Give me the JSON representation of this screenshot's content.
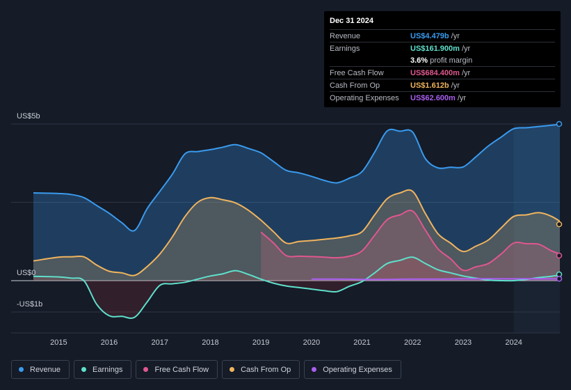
{
  "tooltip": {
    "date": "Dec 31 2024",
    "rows": [
      {
        "label": "Revenue",
        "value": "US$4.479b",
        "unit": "/yr",
        "color": "#3a9bef"
      },
      {
        "label": "Earnings",
        "value": "US$161.900m",
        "unit": "/yr",
        "color": "#5fe0cc"
      },
      {
        "label": "",
        "value": "3.6%",
        "unit": "profit margin",
        "color": "#ffffff"
      },
      {
        "label": "Free Cash Flow",
        "value": "US$684.400m",
        "unit": "/yr",
        "color": "#e0578f"
      },
      {
        "label": "Cash From Op",
        "value": "US$1.612b",
        "unit": "/yr",
        "color": "#f0b45e"
      },
      {
        "label": "Operating Expenses",
        "value": "US$62.600m",
        "unit": "/yr",
        "color": "#a95ff0"
      }
    ]
  },
  "legend": [
    {
      "label": "Revenue",
      "color": "#3a9bef"
    },
    {
      "label": "Earnings",
      "color": "#5fe0cc"
    },
    {
      "label": "Free Cash Flow",
      "color": "#e0578f"
    },
    {
      "label": "Cash From Op",
      "color": "#f0b45e"
    },
    {
      "label": "Operating Expenses",
      "color": "#a95ff0"
    }
  ],
  "chart_data": {
    "type": "area",
    "title": "",
    "xlabel": "",
    "ylabel": "",
    "ylim": [
      -1.0,
      5.0
    ],
    "y_tick_labels": [
      {
        "value": 5,
        "label": "US$5b"
      },
      {
        "value": 0,
        "label": "US$0"
      },
      {
        "value": -1,
        "label": "-US$1b"
      }
    ],
    "x_tick_labels": [
      {
        "value": 2015,
        "label": "2015"
      },
      {
        "value": 2016,
        "label": "2016"
      },
      {
        "value": 2017,
        "label": "2017"
      },
      {
        "value": 2018,
        "label": "2018"
      },
      {
        "value": 2019,
        "label": "2019"
      },
      {
        "value": 2020,
        "label": "2020"
      },
      {
        "value": 2021,
        "label": "2021"
      },
      {
        "value": 2022,
        "label": "2022"
      },
      {
        "value": 2023,
        "label": "2023"
      },
      {
        "value": 2024,
        "label": "2024"
      }
    ],
    "xlim": [
      2014.0,
      2025.0
    ],
    "highlight_from": 2024.0,
    "series": [
      {
        "name": "Revenue",
        "color": "#3a9bef",
        "x": [
          2014.5,
          2015.0,
          2015.25,
          2015.5,
          2015.75,
          2016.0,
          2016.25,
          2016.5,
          2016.75,
          2017.0,
          2017.25,
          2017.5,
          2017.75,
          2018.0,
          2018.25,
          2018.5,
          2018.75,
          2019.0,
          2019.25,
          2019.5,
          2019.75,
          2020.0,
          2020.25,
          2020.5,
          2020.75,
          2021.0,
          2021.25,
          2021.5,
          2021.75,
          2022.0,
          2022.25,
          2022.5,
          2022.75,
          2023.0,
          2023.25,
          2023.5,
          2023.75,
          2024.0,
          2024.25,
          2024.5,
          2024.75,
          2025.0
        ],
        "values": [
          2.8,
          2.78,
          2.75,
          2.65,
          2.4,
          2.15,
          1.85,
          1.6,
          2.3,
          2.85,
          3.4,
          4.05,
          4.12,
          4.18,
          4.26,
          4.34,
          4.22,
          4.08,
          3.8,
          3.52,
          3.44,
          3.33,
          3.2,
          3.12,
          3.27,
          3.48,
          4.1,
          4.78,
          4.77,
          4.74,
          3.9,
          3.6,
          3.62,
          3.63,
          3.95,
          4.3,
          4.58,
          4.85,
          4.88,
          4.92,
          4.96,
          5.0
        ]
      },
      {
        "name": "Earnings",
        "color": "#5fe0cc",
        "x": [
          2014.5,
          2015.0,
          2015.25,
          2015.5,
          2015.75,
          2016.0,
          2016.25,
          2016.5,
          2016.75,
          2017.0,
          2017.25,
          2017.5,
          2017.75,
          2018.0,
          2018.25,
          2018.5,
          2018.75,
          2019.0,
          2019.25,
          2019.5,
          2019.75,
          2020.0,
          2020.25,
          2020.5,
          2020.75,
          2021.0,
          2021.25,
          2021.5,
          2021.75,
          2022.0,
          2022.25,
          2022.5,
          2022.75,
          2023.0,
          2023.25,
          2023.5,
          2023.75,
          2024.0,
          2024.25,
          2024.5,
          2024.75,
          2025.0
        ],
        "values": [
          0.14,
          0.12,
          0.08,
          0.0,
          -0.75,
          -1.12,
          -1.14,
          -1.17,
          -0.68,
          -0.15,
          -0.1,
          -0.05,
          0.05,
          0.15,
          0.22,
          0.32,
          0.2,
          0.05,
          -0.08,
          -0.17,
          -0.22,
          -0.27,
          -0.32,
          -0.35,
          -0.18,
          -0.03,
          0.25,
          0.55,
          0.65,
          0.75,
          0.55,
          0.35,
          0.25,
          0.15,
          0.08,
          0.02,
          0.0,
          0.0,
          0.04,
          0.1,
          0.14,
          0.2
        ]
      },
      {
        "name": "Free Cash Flow",
        "color": "#e0578f",
        "x": [
          2019.0,
          2019.25,
          2019.5,
          2019.75,
          2020.0,
          2020.25,
          2020.5,
          2020.75,
          2021.0,
          2021.25,
          2021.5,
          2021.75,
          2022.0,
          2022.25,
          2022.5,
          2022.75,
          2023.0,
          2023.25,
          2023.5,
          2023.75,
          2024.0,
          2024.25,
          2024.5,
          2024.75,
          2025.0
        ],
        "values": [
          1.55,
          1.2,
          0.8,
          0.78,
          0.77,
          0.75,
          0.73,
          0.78,
          0.95,
          1.45,
          1.95,
          2.1,
          2.22,
          1.62,
          1.02,
          0.7,
          0.33,
          0.44,
          0.55,
          0.85,
          1.2,
          1.18,
          1.16,
          0.95,
          0.8
        ]
      },
      {
        "name": "Cash From Op",
        "color": "#f0b45e",
        "x": [
          2014.5,
          2015.0,
          2015.25,
          2015.5,
          2015.75,
          2016.0,
          2016.25,
          2016.5,
          2016.75,
          2017.0,
          2017.25,
          2017.5,
          2017.75,
          2018.0,
          2018.25,
          2018.5,
          2018.75,
          2019.0,
          2019.25,
          2019.5,
          2019.75,
          2020.0,
          2020.25,
          2020.5,
          2020.75,
          2021.0,
          2021.25,
          2021.5,
          2021.75,
          2022.0,
          2022.25,
          2022.5,
          2022.75,
          2023.0,
          2023.25,
          2023.5,
          2023.75,
          2024.0,
          2024.25,
          2024.5,
          2024.75,
          2025.0
        ],
        "values": [
          0.63,
          0.75,
          0.76,
          0.76,
          0.5,
          0.3,
          0.25,
          0.17,
          0.45,
          0.85,
          1.4,
          2.05,
          2.5,
          2.65,
          2.58,
          2.48,
          2.25,
          1.93,
          1.56,
          1.2,
          1.25,
          1.28,
          1.32,
          1.36,
          1.43,
          1.56,
          2.1,
          2.62,
          2.8,
          2.85,
          2.15,
          1.5,
          1.2,
          0.93,
          1.1,
          1.3,
          1.68,
          2.05,
          2.1,
          2.17,
          2.05,
          1.8
        ]
      },
      {
        "name": "Operating Expenses",
        "color": "#a95ff0",
        "x": [
          2020.0,
          2020.5,
          2021.0,
          2021.5,
          2022.0,
          2022.5,
          2023.0,
          2023.5,
          2024.0,
          2024.5,
          2025.0
        ],
        "values": [
          0.05,
          0.05,
          0.04,
          0.04,
          0.05,
          0.05,
          0.06,
          0.06,
          0.06,
          0.06,
          0.06
        ]
      }
    ]
  }
}
